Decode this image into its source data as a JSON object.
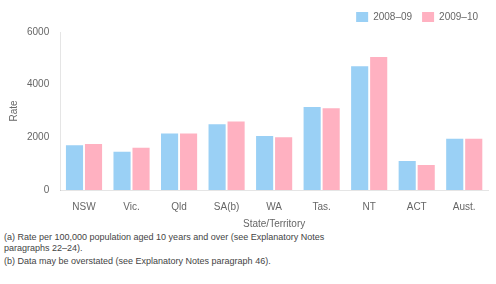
{
  "chart_data": {
    "type": "bar",
    "categories": [
      "NSW",
      "Vic.",
      "Qld",
      "SA(b)",
      "WA",
      "Tas.",
      "NT",
      "ACT",
      "Aust."
    ],
    "series": [
      {
        "name": "2008–09",
        "values": [
          1700,
          1450,
          2150,
          2500,
          2050,
          3150,
          4700,
          1100,
          1950
        ]
      },
      {
        "name": "2009–10",
        "values": [
          1750,
          1600,
          2150,
          2600,
          2000,
          3100,
          5050,
          950,
          1950
        ]
      }
    ],
    "xlabel": "State/Territory",
    "ylabel": "Rate",
    "ylim": [
      0,
      6000
    ],
    "yticks": [
      0,
      2000,
      4000,
      6000
    ],
    "grid": false,
    "legend": "upper right",
    "annotations": [
      "(a) Rate per 100,000 population aged 10 years and over (see Explanatory Notes\nparagraphs 22–24).",
      "(b) Data may be overstated (see Explanatory Notes paragraph 46)."
    ]
  }
}
